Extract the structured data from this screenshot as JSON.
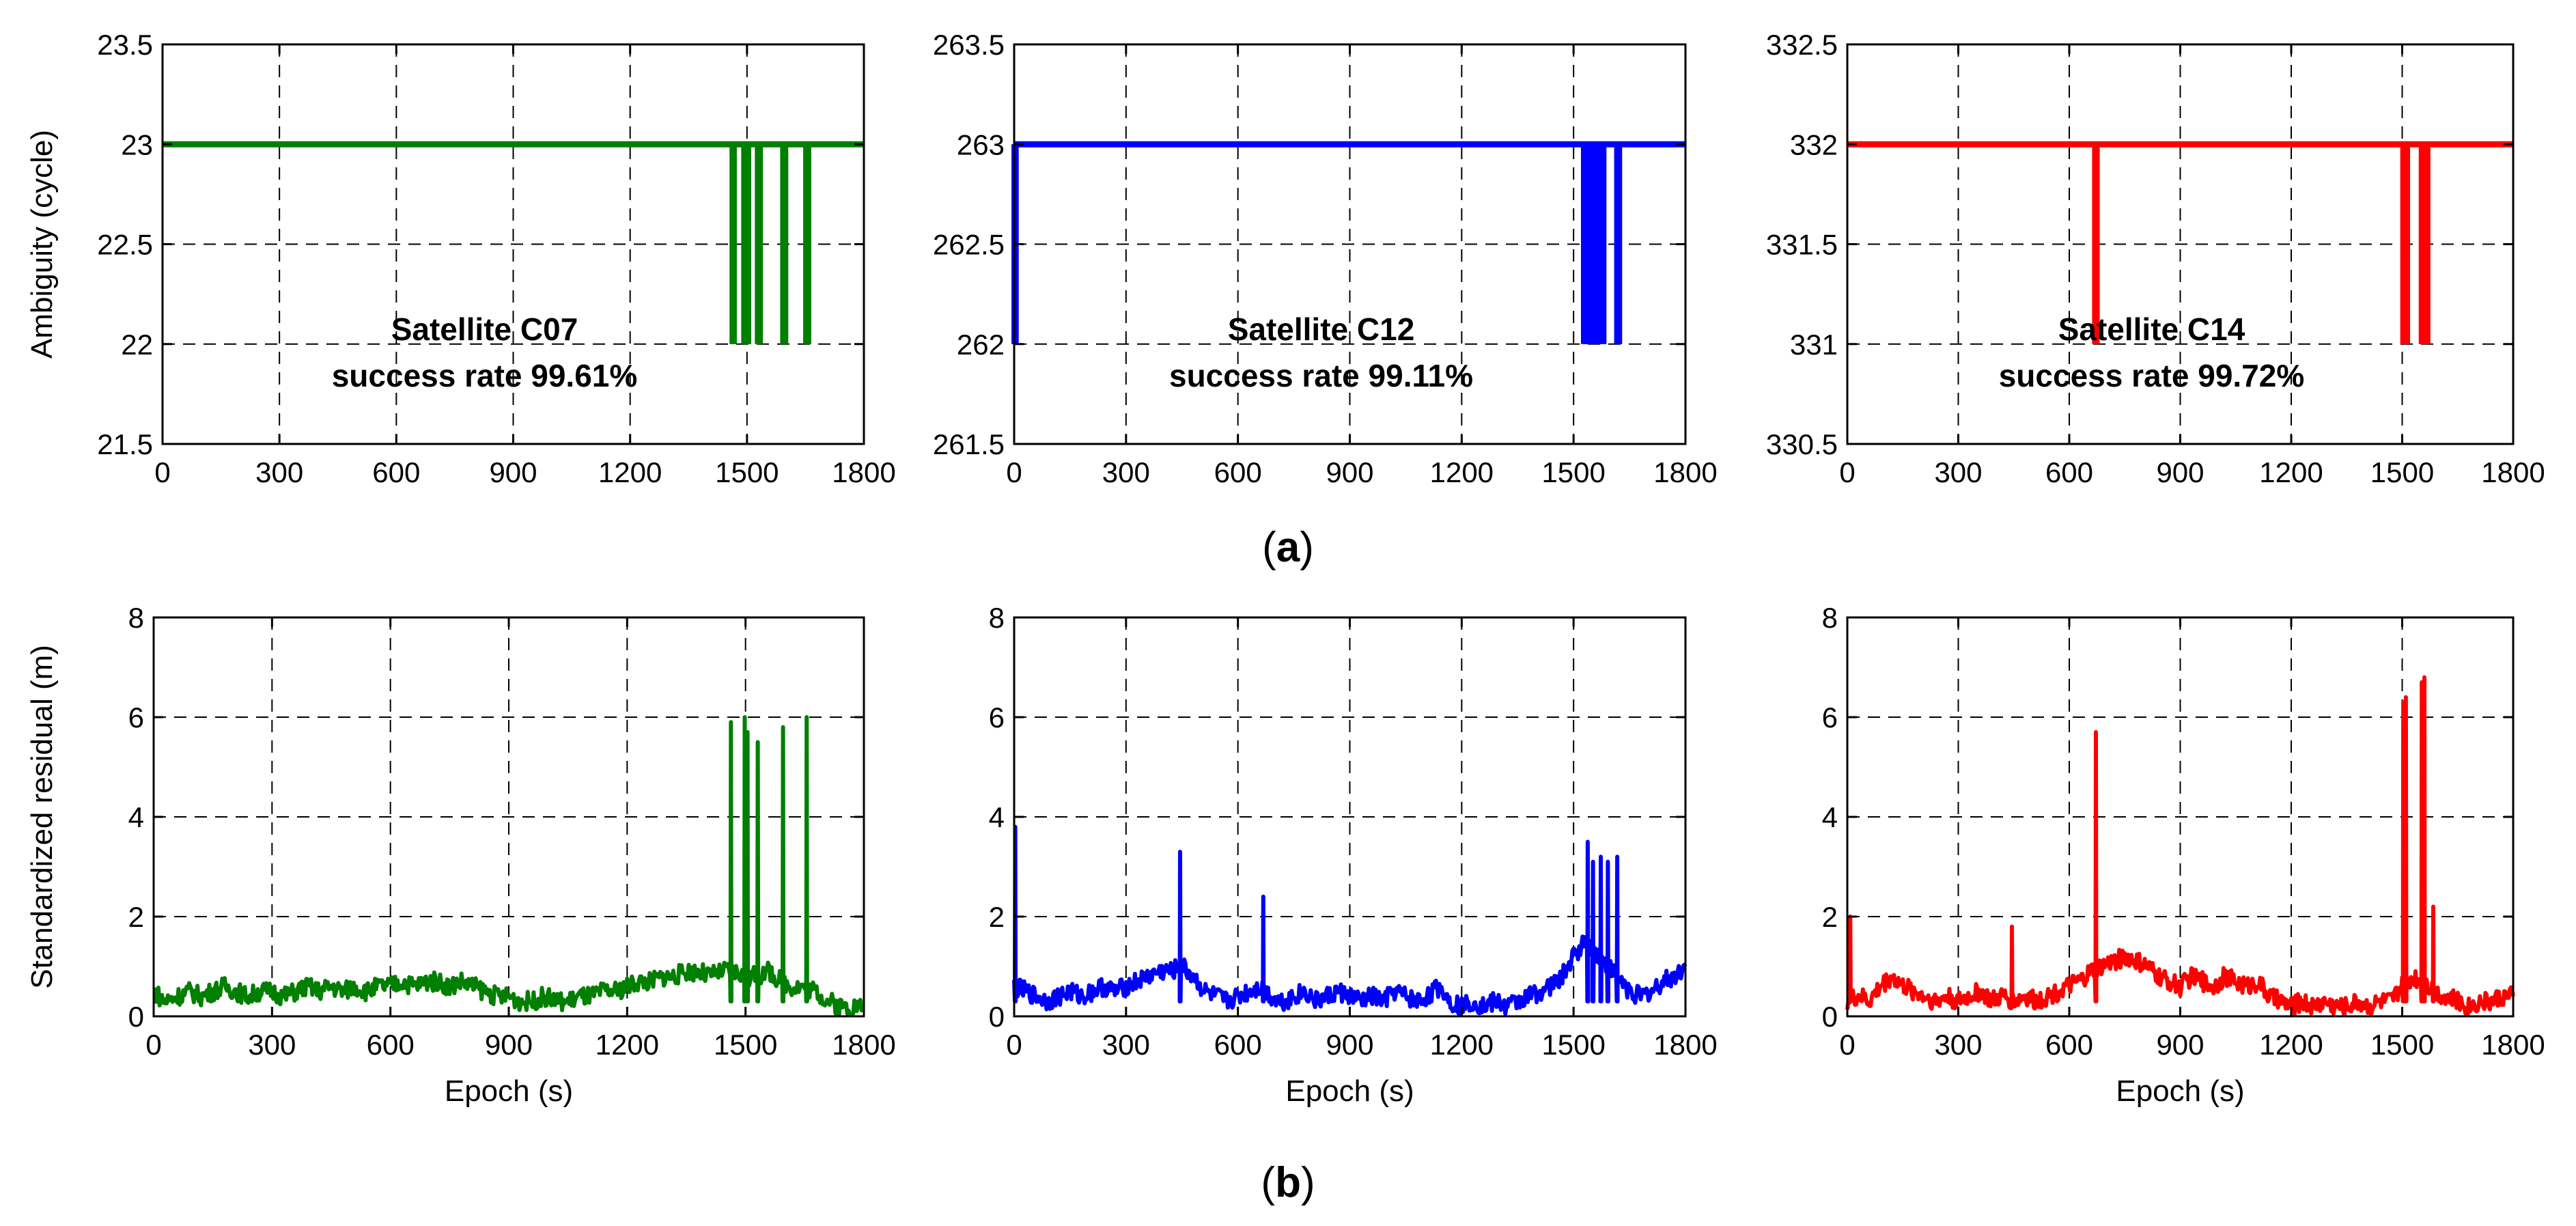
{
  "figure": {
    "panel_a_label": "(a)",
    "panel_b_label": "(b)",
    "panel_a_letter": "a",
    "panel_b_letter": "b"
  },
  "colors": {
    "C07": "#007f00",
    "C12": "#0000ff",
    "C14": "#ff0000"
  },
  "chart_data": [
    {
      "id": "a1",
      "type": "line",
      "row": "a",
      "satellite": "C07",
      "color_key": "C07",
      "ylabel": "Ambiguity (cycle)",
      "xlabel": "",
      "xlim": [
        0,
        1800
      ],
      "ylim": [
        21.5,
        23.5
      ],
      "xticks": [
        0,
        300,
        600,
        900,
        1200,
        1500,
        1800
      ],
      "xtick_labels": [
        "0",
        "300",
        "600",
        "900",
        "1200",
        "1500",
        "1800"
      ],
      "yticks": [
        21.5,
        22,
        22.5,
        23,
        23.5
      ],
      "ytick_labels": [
        "21.5",
        "22",
        "22.5",
        "23",
        "23.5"
      ],
      "annotation": [
        "Satellite C07",
        "success rate  99.61%"
      ],
      "series": [
        {
          "name": "C07 ambiguity",
          "baseline": 23,
          "drops_to": 22,
          "drop_epochs": [
            1463,
            1466,
            1493,
            1498,
            1503,
            1528,
            1533,
            1593,
            1598,
            1652,
            1657
          ]
        }
      ]
    },
    {
      "id": "a2",
      "type": "line",
      "row": "a",
      "satellite": "C12",
      "color_key": "C12",
      "ylabel": "",
      "xlabel": "",
      "xlim": [
        0,
        1800
      ],
      "ylim": [
        261.5,
        263.5
      ],
      "xticks": [
        0,
        300,
        600,
        900,
        1200,
        1500,
        1800
      ],
      "xtick_labels": [
        "0",
        "300",
        "600",
        "900",
        "1200",
        "1500",
        "1800"
      ],
      "yticks": [
        261.5,
        262,
        262.5,
        263,
        263.5
      ],
      "ytick_labels": [
        "261.5",
        "262",
        "262.5",
        "263",
        "263.5"
      ],
      "annotation": [
        "Satellite C12",
        "success rate  99.11%"
      ],
      "series": [
        {
          "name": "C12 ambiguity",
          "baseline": 263,
          "drops_to": 262,
          "drop_epochs": [
            1,
            4,
            1528,
            1533,
            1540,
            1545,
            1552,
            1558,
            1563,
            1568,
            1574,
            1580,
            1617,
            1622
          ]
        }
      ]
    },
    {
      "id": "a3",
      "type": "line",
      "row": "a",
      "satellite": "C14",
      "color_key": "C14",
      "ylabel": "",
      "xlabel": "",
      "xlim": [
        0,
        1800
      ],
      "ylim": [
        330.5,
        332.5
      ],
      "xticks": [
        0,
        300,
        600,
        900,
        1200,
        1500,
        1800
      ],
      "xtick_labels": [
        "0",
        "300",
        "600",
        "900",
        "1200",
        "1500",
        "1800"
      ],
      "yticks": [
        330.5,
        331,
        331.5,
        332,
        332.5
      ],
      "ytick_labels": [
        "330.5",
        "331",
        "331.5",
        "332",
        "332.5"
      ],
      "annotation": [
        "Satellite C14",
        "success rate  99.72%"
      ],
      "series": [
        {
          "name": "C14 ambiguity",
          "baseline": 332,
          "drops_to": 331,
          "drop_epochs": [
            670,
            674,
            1503,
            1508,
            1513,
            1553,
            1558,
            1563,
            1568
          ]
        }
      ]
    },
    {
      "id": "b1",
      "type": "line",
      "row": "b",
      "satellite": "C07",
      "color_key": "C07",
      "ylabel": "Standardized residual (m)",
      "xlabel": "Epoch (s)",
      "xlim": [
        0,
        1800
      ],
      "ylim": [
        0,
        8
      ],
      "xticks": [
        0,
        300,
        600,
        900,
        1200,
        1500,
        1800
      ],
      "xtick_labels": [
        "0",
        "300",
        "600",
        "900",
        "1200",
        "1500",
        "1800"
      ],
      "yticks": [
        0,
        2,
        4,
        6,
        8
      ],
      "ytick_labels": [
        "0",
        "2",
        "4",
        "6",
        "8"
      ],
      "series": [
        {
          "name": "C07 standardized residual",
          "x": [
            0,
            30,
            60,
            90,
            120,
            150,
            180,
            210,
            240,
            270,
            300,
            330,
            360,
            390,
            420,
            450,
            480,
            510,
            540,
            570,
            600,
            630,
            660,
            690,
            720,
            750,
            780,
            810,
            840,
            870,
            900,
            930,
            960,
            990,
            1020,
            1050,
            1080,
            1110,
            1140,
            1170,
            1200,
            1230,
            1260,
            1290,
            1320,
            1350,
            1380,
            1410,
            1440,
            1470,
            1500,
            1530,
            1560,
            1590,
            1620,
            1650,
            1680,
            1710,
            1740,
            1770,
            1800
          ],
          "y": [
            0.5,
            0.3,
            0.4,
            0.5,
            0.4,
            0.5,
            0.6,
            0.5,
            0.4,
            0.5,
            0.5,
            0.4,
            0.5,
            0.6,
            0.5,
            0.6,
            0.5,
            0.6,
            0.5,
            0.6,
            0.6,
            0.7,
            0.6,
            0.7,
            0.7,
            0.6,
            0.7,
            0.6,
            0.5,
            0.4,
            0.4,
            0.3,
            0.3,
            0.4,
            0.3,
            0.3,
            0.4,
            0.4,
            0.5,
            0.5,
            0.6,
            0.7,
            0.7,
            0.8,
            0.8,
            0.9,
            0.9,
            0.8,
            0.9,
            0.9,
            0.8,
            0.8,
            0.9,
            0.7,
            0.6,
            0.6,
            0.5,
            0.3,
            0.2,
            0.2,
            0.2
          ],
          "spikes": [
            [
              1463,
              5.9
            ],
            [
              1498,
              6.0
            ],
            [
              1505,
              5.7
            ],
            [
              1531,
              5.5
            ],
            [
              1595,
              5.8
            ],
            [
              1655,
              6.0
            ]
          ]
        }
      ]
    },
    {
      "id": "b2",
      "type": "line",
      "row": "b",
      "satellite": "C12",
      "color_key": "C12",
      "ylabel": "",
      "xlabel": "Epoch (s)",
      "xlim": [
        0,
        1800
      ],
      "ylim": [
        0,
        8
      ],
      "xticks": [
        0,
        300,
        600,
        900,
        1200,
        1500,
        1800
      ],
      "xtick_labels": [
        "0",
        "300",
        "600",
        "900",
        "1200",
        "1500",
        "1800"
      ],
      "yticks": [
        0,
        2,
        4,
        6,
        8
      ],
      "ytick_labels": [
        "0",
        "2",
        "4",
        "6",
        "8"
      ],
      "series": [
        {
          "name": "C12 standardized residual",
          "x": [
            0,
            30,
            60,
            90,
            120,
            150,
            180,
            210,
            240,
            270,
            300,
            330,
            360,
            390,
            420,
            450,
            480,
            510,
            540,
            570,
            600,
            630,
            660,
            690,
            720,
            750,
            780,
            810,
            840,
            870,
            900,
            930,
            960,
            990,
            1020,
            1050,
            1080,
            1110,
            1140,
            1170,
            1200,
            1230,
            1260,
            1290,
            1320,
            1350,
            1380,
            1410,
            1440,
            1470,
            1500,
            1530,
            1560,
            1590,
            1620,
            1650,
            1680,
            1710,
            1740,
            1770,
            1800
          ],
          "y": [
            0.6,
            0.5,
            0.4,
            0.3,
            0.4,
            0.5,
            0.4,
            0.5,
            0.6,
            0.5,
            0.6,
            0.7,
            0.8,
            0.9,
            0.9,
            1.0,
            0.8,
            0.5,
            0.4,
            0.3,
            0.4,
            0.5,
            0.6,
            0.4,
            0.3,
            0.4,
            0.5,
            0.3,
            0.4,
            0.5,
            0.4,
            0.3,
            0.4,
            0.3,
            0.5,
            0.4,
            0.3,
            0.4,
            0.6,
            0.3,
            0.2,
            0.3,
            0.2,
            0.3,
            0.2,
            0.3,
            0.4,
            0.5,
            0.6,
            0.8,
            1.2,
            1.5,
            1.3,
            1.0,
            0.8,
            0.5,
            0.4,
            0.5,
            0.7,
            0.8,
            1.0
          ],
          "spikes": [
            [
              3,
              3.8
            ],
            [
              445,
              3.3
            ],
            [
              668,
              2.4
            ],
            [
              1538,
              3.5
            ],
            [
              1552,
              3.1
            ],
            [
              1573,
              3.2
            ],
            [
              1592,
              3.1
            ],
            [
              1617,
              3.2
            ]
          ]
        }
      ]
    },
    {
      "id": "b3",
      "type": "line",
      "row": "b",
      "satellite": "C14",
      "color_key": "C14",
      "ylabel": "",
      "xlabel": "Epoch (s)",
      "xlim": [
        0,
        1800
      ],
      "ylim": [
        0,
        8
      ],
      "xticks": [
        0,
        300,
        600,
        900,
        1200,
        1500,
        1800
      ],
      "xtick_labels": [
        "0",
        "300",
        "600",
        "900",
        "1200",
        "1500",
        "1800"
      ],
      "yticks": [
        0,
        2,
        4,
        6,
        8
      ],
      "ytick_labels": [
        "0",
        "2",
        "4",
        "6",
        "8"
      ],
      "series": [
        {
          "name": "C14 standardized residual",
          "x": [
            0,
            30,
            60,
            90,
            120,
            150,
            180,
            210,
            240,
            270,
            300,
            330,
            360,
            390,
            420,
            450,
            480,
            510,
            540,
            570,
            600,
            630,
            660,
            690,
            720,
            750,
            780,
            810,
            840,
            870,
            900,
            930,
            960,
            990,
            1020,
            1050,
            1080,
            1110,
            1140,
            1170,
            1200,
            1230,
            1260,
            1290,
            1320,
            1350,
            1380,
            1410,
            1440,
            1470,
            1500,
            1530,
            1560,
            1590,
            1620,
            1650,
            1680,
            1710,
            1740,
            1770,
            1800
          ],
          "y": [
            0.3,
            0.4,
            0.3,
            0.6,
            0.8,
            0.6,
            0.5,
            0.4,
            0.3,
            0.4,
            0.3,
            0.4,
            0.5,
            0.3,
            0.4,
            0.3,
            0.4,
            0.3,
            0.4,
            0.5,
            0.6,
            0.7,
            0.9,
            1.0,
            1.1,
            1.2,
            1.1,
            1.0,
            0.8,
            0.7,
            0.6,
            0.8,
            0.7,
            0.6,
            0.8,
            0.7,
            0.6,
            0.7,
            0.4,
            0.3,
            0.2,
            0.3,
            0.2,
            0.3,
            0.2,
            0.2,
            0.3,
            0.2,
            0.3,
            0.3,
            0.6,
            0.8,
            0.7,
            0.5,
            0.4,
            0.3,
            0.2,
            0.3,
            0.3,
            0.4,
            0.4
          ],
          "spikes": [
            [
              8,
              2.0
            ],
            [
              445,
              1.8
            ],
            [
              672,
              5.7
            ],
            [
              1503,
              6.3
            ],
            [
              1510,
              6.4
            ],
            [
              1553,
              6.7
            ],
            [
              1560,
              6.8
            ],
            [
              1584,
              2.2
            ]
          ]
        }
      ]
    }
  ]
}
